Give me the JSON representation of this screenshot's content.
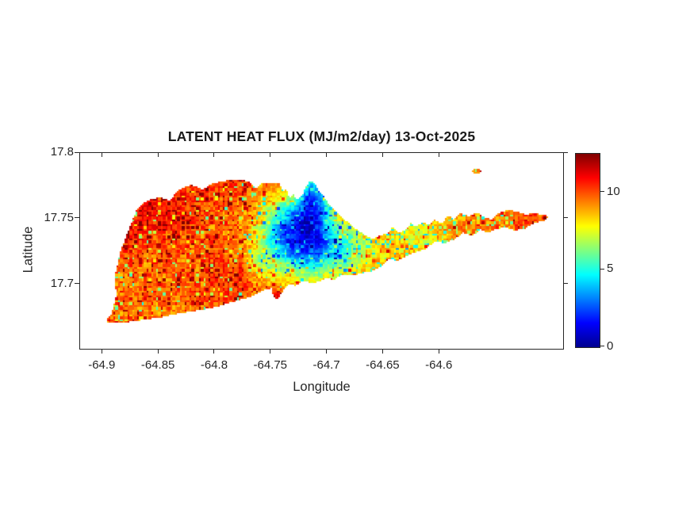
{
  "figure": {
    "background": "#ffffff",
    "text_color": "#262626",
    "axis_color": "#262626"
  },
  "chart_data": {
    "type": "heatmap",
    "title": "LATENT HEAT FLUX (MJ/m2/day) 13-Oct-2025",
    "xlabel": "Longitude",
    "ylabel": "Latitude",
    "xlim": [
      -64.92,
      -64.49
    ],
    "ylim": [
      17.651,
      17.8
    ],
    "xticks": [
      -64.9,
      -64.85,
      -64.8,
      -64.75,
      -64.7,
      -64.65,
      -64.6
    ],
    "xtick_labels": [
      "-64.9",
      "-64.85",
      "-64.8",
      "-64.75",
      "-64.7",
      "-64.65",
      "-64.6"
    ],
    "yticks": [
      17.8,
      17.75,
      17.7
    ],
    "ytick_labels": [
      "17.8",
      "17.75",
      "17.7"
    ],
    "grid": false,
    "colorbar": {
      "range": [
        0,
        12.5
      ],
      "ticks": [
        0,
        5,
        10
      ],
      "tick_labels": [
        "0",
        "5",
        "10"
      ],
      "colormap": "jet",
      "stops": [
        [
          0,
          "#00008F"
        ],
        [
          0.125,
          "#0000FF"
        ],
        [
          0.375,
          "#00FFFF"
        ],
        [
          0.625,
          "#FFFF00"
        ],
        [
          0.875,
          "#FF0000"
        ],
        [
          1,
          "#7F0000"
        ]
      ]
    },
    "field": {
      "base": 9.4,
      "noise": {
        "cell": 3,
        "jitter": 1.7,
        "green_prob": 0.055,
        "green_prob_east": 0.12,
        "red_prob": 0.07,
        "red_prob_west": 0.13,
        "east_lon": -64.7,
        "west_lon": -64.75
      },
      "blobs": [
        {
          "lon": -64.862,
          "lat": 17.754,
          "slon": 0.03,
          "slat": 0.022,
          "amp": 1.4
        },
        {
          "lon": -64.8,
          "lat": 17.77,
          "slon": 0.03,
          "slat": 0.012,
          "amp": 0.8
        },
        {
          "lon": -64.72,
          "lat": 17.734,
          "slon": 0.024,
          "slat": 0.019,
          "amp": -7.2
        },
        {
          "lon": -64.714,
          "lat": 17.766,
          "slon": 0.01,
          "slat": 0.015,
          "amp": -5.2
        },
        {
          "lon": -64.74,
          "lat": 17.745,
          "slon": 0.014,
          "slat": 0.015,
          "amp": -1.8
        },
        {
          "lon": -64.68,
          "lat": 17.725,
          "slon": 0.02,
          "slat": 0.012,
          "amp": -2.0
        },
        {
          "lon": -64.625,
          "lat": 17.74,
          "slon": 0.022,
          "slat": 0.013,
          "amp": -1.6
        },
        {
          "lon": -64.6125,
          "lat": 17.7215,
          "slon": 0.0022,
          "slat": 0.0018,
          "amp": -7.0
        },
        {
          "lon": -64.7455,
          "lat": 17.69,
          "slon": 0.0028,
          "slat": 0.0035,
          "amp": 1.8
        },
        {
          "lon": -64.52,
          "lat": 17.751,
          "slon": 0.012,
          "slat": 0.006,
          "amp": 0.6
        },
        {
          "lon": -64.79,
          "lat": 17.705,
          "slon": 0.035,
          "slat": 0.015,
          "amp": 0.7
        },
        {
          "lon": -64.758,
          "lat": 17.715,
          "slon": 0.008,
          "slat": 0.008,
          "amp": -1.8
        }
      ]
    },
    "island_outline": [
      [
        -64.8967,
        17.6723
      ],
      [
        -64.8918,
        17.6783
      ],
      [
        -64.8875,
        17.6928
      ],
      [
        -64.8896,
        17.7036
      ],
      [
        -64.8847,
        17.7229
      ],
      [
        -64.879,
        17.7373
      ],
      [
        -64.8741,
        17.747
      ],
      [
        -64.8692,
        17.7578
      ],
      [
        -64.86,
        17.7639
      ],
      [
        -64.8494,
        17.7663
      ],
      [
        -64.8402,
        17.7639
      ],
      [
        -64.8317,
        17.7723
      ],
      [
        -64.8211,
        17.7759
      ],
      [
        -64.8106,
        17.7723
      ],
      [
        -64.8014,
        17.7771
      ],
      [
        -64.7894,
        17.7789
      ],
      [
        -64.7788,
        17.7801
      ],
      [
        -64.7703,
        17.7783
      ],
      [
        -64.7633,
        17.7735
      ],
      [
        -64.7576,
        17.7777
      ],
      [
        -64.7506,
        17.7765
      ],
      [
        -64.7421,
        17.7765
      ],
      [
        -64.7393,
        17.7705
      ],
      [
        -64.7364,
        17.7735
      ],
      [
        -64.7336,
        17.7651
      ],
      [
        -64.7301,
        17.7687
      ],
      [
        -64.7266,
        17.7639
      ],
      [
        -64.7223,
        17.7675
      ],
      [
        -64.7188,
        17.7747
      ],
      [
        -64.7153,
        17.7789
      ],
      [
        -64.7124,
        17.7783
      ],
      [
        -64.7082,
        17.7723
      ],
      [
        -64.7033,
        17.7669
      ],
      [
        -64.6976,
        17.7602
      ],
      [
        -64.6898,
        17.7536
      ],
      [
        -64.6821,
        17.7476
      ],
      [
        -64.6743,
        17.7422
      ],
      [
        -64.6658,
        17.7373
      ],
      [
        -64.6588,
        17.7343
      ],
      [
        -64.6538,
        17.7373
      ],
      [
        -64.6468,
        17.7386
      ],
      [
        -64.6418,
        17.7434
      ],
      [
        -64.6362,
        17.7392
      ],
      [
        -64.6298,
        17.7416
      ],
      [
        -64.6256,
        17.7464
      ],
      [
        -64.6207,
        17.744
      ],
      [
        -64.615,
        17.7476
      ],
      [
        -64.6101,
        17.7452
      ],
      [
        -64.6044,
        17.7488
      ],
      [
        -64.5981,
        17.7464
      ],
      [
        -64.5924,
        17.7524
      ],
      [
        -64.5868,
        17.7494
      ],
      [
        -64.5811,
        17.7542
      ],
      [
        -64.5741,
        17.7518
      ],
      [
        -64.567,
        17.7548
      ],
      [
        -64.5599,
        17.7512
      ],
      [
        -64.5543,
        17.7494
      ],
      [
        -64.5472,
        17.7542
      ],
      [
        -64.5388,
        17.7566
      ],
      [
        -64.5303,
        17.7554
      ],
      [
        -64.5232,
        17.753
      ],
      [
        -64.5161,
        17.7542
      ],
      [
        -64.5077,
        17.753
      ],
      [
        -64.5034,
        17.7518
      ],
      [
        -64.5063,
        17.7488
      ],
      [
        -64.5161,
        17.7464
      ],
      [
        -64.5246,
        17.7422
      ],
      [
        -64.5331,
        17.741
      ],
      [
        -64.5416,
        17.7434
      ],
      [
        -64.5493,
        17.7422
      ],
      [
        -64.5564,
        17.7392
      ],
      [
        -64.5635,
        17.7416
      ],
      [
        -64.5712,
        17.7368
      ],
      [
        -64.579,
        17.7392
      ],
      [
        -64.5868,
        17.7343
      ],
      [
        -64.5952,
        17.7313
      ],
      [
        -64.6037,
        17.7331
      ],
      [
        -64.6122,
        17.7271
      ],
      [
        -64.6207,
        17.7247
      ],
      [
        -64.6291,
        17.7217
      ],
      [
        -64.6376,
        17.7181
      ],
      [
        -64.6447,
        17.7193
      ],
      [
        -64.6517,
        17.7133
      ],
      [
        -64.6602,
        17.7102
      ],
      [
        -64.6694,
        17.7084
      ],
      [
        -64.6779,
        17.7066
      ],
      [
        -64.687,
        17.7072
      ],
      [
        -64.6941,
        17.7036
      ],
      [
        -64.7012,
        17.7048
      ],
      [
        -64.7082,
        17.7018
      ],
      [
        -64.7153,
        17.7012
      ],
      [
        -64.7223,
        17.703
      ],
      [
        -64.728,
        17.6988
      ],
      [
        -64.7322,
        17.7006
      ],
      [
        -64.7379,
        17.697
      ],
      [
        -64.7421,
        17.6916
      ],
      [
        -64.7449,
        17.688
      ],
      [
        -64.7477,
        17.691
      ],
      [
        -64.7498,
        17.697
      ],
      [
        -64.7548,
        17.6964
      ],
      [
        -64.7611,
        17.6934
      ],
      [
        -64.7682,
        17.6904
      ],
      [
        -64.776,
        17.6886
      ],
      [
        -64.7844,
        17.6867
      ],
      [
        -64.7929,
        17.6843
      ],
      [
        -64.8014,
        17.6825
      ],
      [
        -64.8106,
        17.6807
      ],
      [
        -64.8197,
        17.6795
      ],
      [
        -64.8296,
        17.6783
      ],
      [
        -64.8395,
        17.6765
      ],
      [
        -64.8494,
        17.6747
      ],
      [
        -64.8593,
        17.6735
      ],
      [
        -64.8692,
        17.6723
      ],
      [
        -64.879,
        17.6711
      ],
      [
        -64.8882,
        17.6705
      ],
      [
        -64.8946,
        17.6711
      ]
    ],
    "buck_island": {
      "center": [
        -64.567,
        17.7861
      ],
      "rx": 0.0049,
      "ry": 0.0016
    }
  }
}
